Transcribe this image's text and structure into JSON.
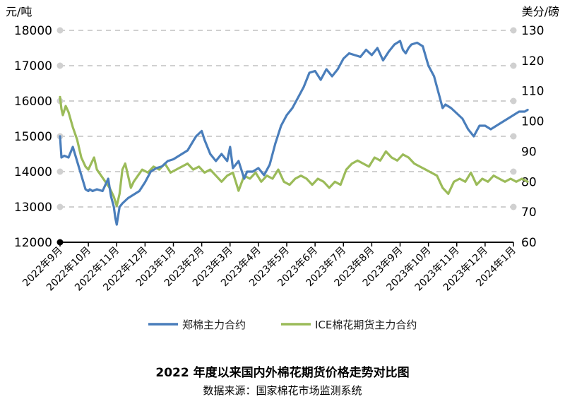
{
  "title": "2022 年度以来国内外棉花期货价格走势对比图",
  "source": "数据来源：国家棉花市场监测系统",
  "chart_data": {
    "type": "line",
    "left_axis": {
      "label": "元/吨",
      "min": 12000,
      "max": 18000,
      "ticks": [
        "12000",
        "13000",
        "14000",
        "15000",
        "16000",
        "17000",
        "18000"
      ]
    },
    "right_axis": {
      "label": "美分/磅",
      "min": 60,
      "max": 130,
      "ticks": [
        "60",
        "70",
        "80",
        "90",
        "100",
        "110",
        "120",
        "130"
      ]
    },
    "x_categories": [
      "2022年9月",
      "2022年10月",
      "2022年11月",
      "2022年12月",
      "2023年1月",
      "2023年2月",
      "2023年3月",
      "2023年4月",
      "2023年5月",
      "2023年6月",
      "2023年7月",
      "2023年8月",
      "2023年9月",
      "2023年10月",
      "2023年11月",
      "2023年12月",
      "2024年1月"
    ],
    "grid": "horizontal dashed",
    "legend_position": "bottom",
    "series": [
      {
        "name": "郑棉主力合约",
        "axis": "left",
        "color": "#4a7ebb",
        "x": [
          0,
          0.05,
          0.15,
          0.3,
          0.45,
          0.6,
          0.75,
          0.9,
          1.0,
          1.05,
          1.15,
          1.3,
          1.5,
          1.7,
          1.8,
          1.9,
          1.95,
          2.0,
          2.1,
          2.2,
          2.4,
          2.6,
          2.8,
          3.0,
          3.2,
          3.4,
          3.6,
          3.8,
          4.0,
          4.2,
          4.5,
          4.8,
          5.0,
          5.1,
          5.3,
          5.5,
          5.7,
          5.9,
          6.0,
          6.1,
          6.3,
          6.5,
          6.6,
          6.8,
          7.0,
          7.2,
          7.4,
          7.6,
          7.8,
          8.0,
          8.2,
          8.4,
          8.6,
          8.8,
          9.0,
          9.2,
          9.4,
          9.6,
          9.8,
          10.0,
          10.2,
          10.4,
          10.6,
          10.8,
          11.0,
          11.2,
          11.4,
          11.6,
          11.8,
          12.0,
          12.1,
          12.2,
          12.3,
          12.4,
          12.6,
          12.8,
          13.0,
          13.2,
          13.4,
          13.5,
          13.6,
          13.8,
          14.0,
          14.2,
          14.4,
          14.6,
          14.8,
          15.0,
          15.2,
          15.4,
          15.6,
          15.8,
          16.0,
          16.2,
          16.4,
          16.5
        ],
        "values": [
          15000,
          14400,
          14450,
          14400,
          14700,
          14300,
          13900,
          13500,
          13450,
          13500,
          13450,
          13500,
          13450,
          13800,
          13300,
          13000,
          12700,
          12500,
          13000,
          13100,
          13250,
          13350,
          13450,
          13700,
          14000,
          14100,
          14150,
          14300,
          14350,
          14450,
          14600,
          15000,
          15150,
          14900,
          14500,
          14300,
          14500,
          14300,
          14700,
          14100,
          14300,
          13800,
          14000,
          14000,
          14100,
          13900,
          14200,
          14800,
          15300,
          15600,
          15800,
          16100,
          16400,
          16800,
          16850,
          16600,
          16900,
          16700,
          16900,
          17200,
          17350,
          17300,
          17250,
          17450,
          17300,
          17500,
          17150,
          17400,
          17600,
          17700,
          17450,
          17350,
          17500,
          17600,
          17650,
          17550,
          17000,
          16700,
          16100,
          15800,
          15900,
          15800,
          15650,
          15500,
          15200,
          15000,
          15300,
          15300,
          15200,
          15300,
          15400,
          15500,
          15600,
          15700,
          15700,
          15750
        ]
      },
      {
        "name": "ICE棉花期货主力合约",
        "axis": "right",
        "color": "#9bbb59",
        "x": [
          0,
          0.05,
          0.1,
          0.2,
          0.3,
          0.45,
          0.6,
          0.75,
          0.9,
          1.0,
          1.1,
          1.2,
          1.3,
          1.45,
          1.6,
          1.75,
          1.9,
          2.0,
          2.1,
          2.2,
          2.3,
          2.4,
          2.5,
          2.6,
          2.75,
          2.9,
          3.1,
          3.3,
          3.5,
          3.7,
          3.9,
          4.1,
          4.3,
          4.5,
          4.7,
          4.9,
          5.1,
          5.3,
          5.5,
          5.7,
          5.9,
          6.1,
          6.3,
          6.5,
          6.7,
          6.9,
          7.1,
          7.3,
          7.5,
          7.7,
          7.9,
          8.1,
          8.3,
          8.5,
          8.7,
          8.9,
          9.1,
          9.3,
          9.5,
          9.7,
          9.9,
          10.1,
          10.3,
          10.5,
          10.7,
          10.9,
          11.1,
          11.3,
          11.5,
          11.7,
          11.9,
          12.1,
          12.3,
          12.5,
          12.7,
          12.9,
          13.1,
          13.3,
          13.5,
          13.7,
          13.9,
          14.1,
          14.3,
          14.5,
          14.7,
          14.9,
          15.1,
          15.3,
          15.5,
          15.7,
          15.9,
          16.1,
          16.3,
          16.5
        ],
        "values": [
          108,
          104,
          102,
          105,
          103,
          98,
          94,
          88,
          85,
          84,
          86,
          88,
          84,
          82,
          80,
          78,
          75,
          72,
          76,
          84,
          86,
          82,
          78,
          80,
          82,
          84,
          83,
          85,
          84,
          86,
          83,
          84,
          85,
          86,
          84,
          85,
          83,
          84,
          82,
          80,
          82,
          83,
          77,
          82,
          81,
          83,
          80,
          82,
          81,
          84,
          80,
          79,
          81,
          82,
          81,
          79,
          81,
          80,
          78,
          80,
          79,
          84,
          86,
          87,
          86,
          85,
          88,
          87,
          90,
          88,
          87,
          89,
          88,
          86,
          85,
          84,
          83,
          82,
          78,
          76,
          80,
          81,
          80,
          83,
          79,
          81,
          80,
          82,
          81,
          80,
          81,
          80,
          81,
          80
        ]
      }
    ]
  }
}
